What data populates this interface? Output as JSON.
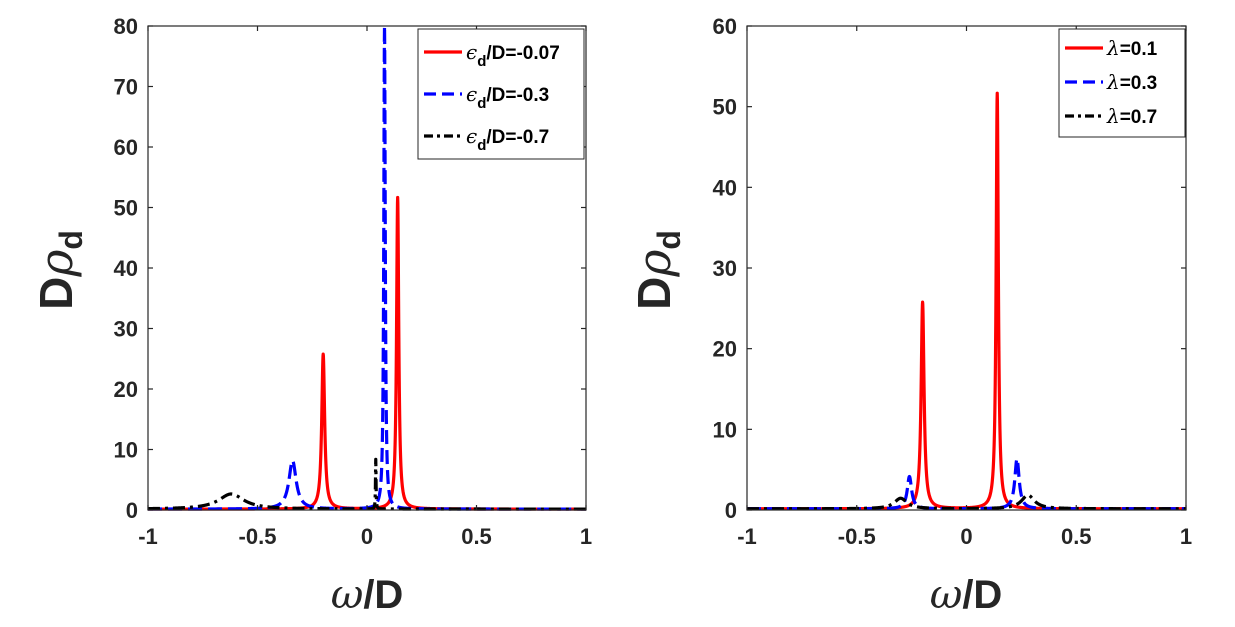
{
  "chart_data": [
    {
      "type": "line",
      "xlabel_symbol": "ω",
      "xlabel_rest": "/D",
      "ylabel_main": "D",
      "ylabel_symbol": "ρ",
      "ylabel_sub": "d",
      "xlim": [
        -1,
        1
      ],
      "ylim": [
        0,
        80
      ],
      "xticks": [
        "-1",
        "-0.5",
        "0",
        "0.5",
        "1"
      ],
      "yticks": [
        "0",
        "10",
        "20",
        "30",
        "40",
        "50",
        "60",
        "70",
        "80"
      ],
      "legend_position": "top-right",
      "series": [
        {
          "name": "ε_d/D=-0.07",
          "legend_symbol": "ϵ",
          "legend_sub": "d",
          "legend_rest": "/D=-0.07",
          "color": "#ff0000",
          "dash": "solid",
          "peaks": [
            {
              "center": -0.2,
              "height": 25.6,
              "width": 0.008
            },
            {
              "center": 0.14,
              "height": 51.5,
              "width": 0.006
            }
          ]
        },
        {
          "name": "ε_d/D=-0.3",
          "legend_symbol": "ϵ",
          "legend_sub": "d",
          "legend_rest": "/D=-0.3",
          "color": "#0000ff",
          "dash": "dashed",
          "peaks": [
            {
              "center": -0.34,
              "height": 8.0,
              "width": 0.02
            },
            {
              "center": 0.08,
              "height": 80.0,
              "width": 0.004
            }
          ]
        },
        {
          "name": "ε_d/D=-0.7",
          "legend_symbol": "ϵ",
          "legend_sub": "d",
          "legend_rest": "/D=-0.7",
          "color": "#000000",
          "dash": "dashdot",
          "peaks": [
            {
              "center": -0.62,
              "height": 2.5,
              "width": 0.07
            },
            {
              "center": 0.04,
              "height": 8.2,
              "width": 0.0015
            }
          ]
        }
      ]
    },
    {
      "type": "line",
      "xlabel_symbol": "ω",
      "xlabel_rest": "/D",
      "ylabel_main": "D",
      "ylabel_symbol": "ρ",
      "ylabel_sub": "d",
      "xlim": [
        -1,
        1
      ],
      "ylim": [
        0,
        60
      ],
      "xticks": [
        "-1",
        "-0.5",
        "0",
        "0.5",
        "1"
      ],
      "yticks": [
        "0",
        "10",
        "20",
        "30",
        "40",
        "50",
        "60"
      ],
      "legend_position": "top-right",
      "series": [
        {
          "name": "λ=0.1",
          "legend_symbol": "λ",
          "legend_sub": "",
          "legend_rest": "=0.1",
          "color": "#ff0000",
          "dash": "solid",
          "peaks": [
            {
              "center": -0.2,
              "height": 25.6,
              "width": 0.008
            },
            {
              "center": 0.14,
              "height": 51.5,
              "width": 0.006
            }
          ]
        },
        {
          "name": "λ=0.3",
          "legend_symbol": "λ",
          "legend_sub": "",
          "legend_rest": "=0.3",
          "color": "#0000ff",
          "dash": "dashed",
          "peaks": [
            {
              "center": -0.26,
              "height": 4.0,
              "width": 0.012
            },
            {
              "center": 0.23,
              "height": 6.2,
              "width": 0.012
            }
          ]
        },
        {
          "name": "λ=0.7",
          "legend_symbol": "λ",
          "legend_sub": "",
          "legend_rest": "=0.7",
          "color": "#000000",
          "dash": "dashdot",
          "peaks": [
            {
              "center": -0.3,
              "height": 1.3,
              "width": 0.035
            },
            {
              "center": 0.28,
              "height": 1.7,
              "width": 0.035
            }
          ]
        }
      ]
    }
  ]
}
